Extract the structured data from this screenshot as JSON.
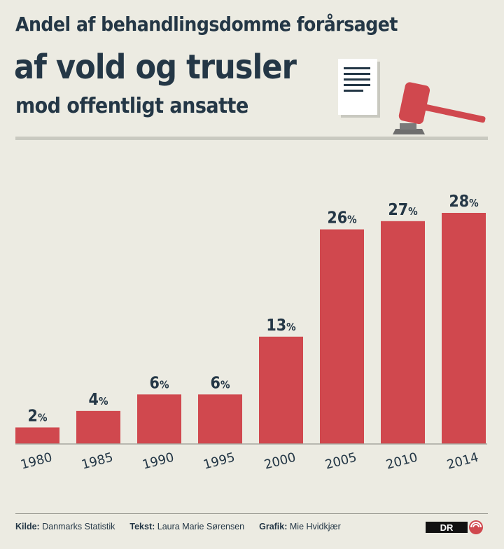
{
  "header": {
    "line1": "Andel af behandlingsdomme forårsaget",
    "line2": "af vold og trusler",
    "line3": "mod offentligt ansatte"
  },
  "colors": {
    "bar": "#d0484e",
    "text": "#243746",
    "background": "#ecebe2"
  },
  "chart_data": {
    "type": "bar",
    "title": "Andel af behandlingsdomme forårsaget af vold og trusler mod offentligt ansatte",
    "categories": [
      "1980",
      "1985",
      "1990",
      "1995",
      "2000",
      "2005",
      "2010",
      "2014"
    ],
    "values": [
      2,
      4,
      6,
      6,
      13,
      26,
      27,
      28
    ],
    "data_labels": [
      "2",
      "4",
      "6",
      "6",
      "13",
      "26",
      "27",
      "28"
    ],
    "value_suffix": "%",
    "xlabel": "",
    "ylabel": "",
    "ylim": [
      0,
      28
    ],
    "grid": false,
    "legend": "none"
  },
  "footer": {
    "source_label": "Kilde:",
    "source_value": "Danmarks Statistik",
    "text_label": "Tekst:",
    "text_value": "Laura Marie Sørensen",
    "graphics_label": "Grafik:",
    "graphics_value": "Mie Hvidkjær",
    "logo_text": "DR"
  }
}
